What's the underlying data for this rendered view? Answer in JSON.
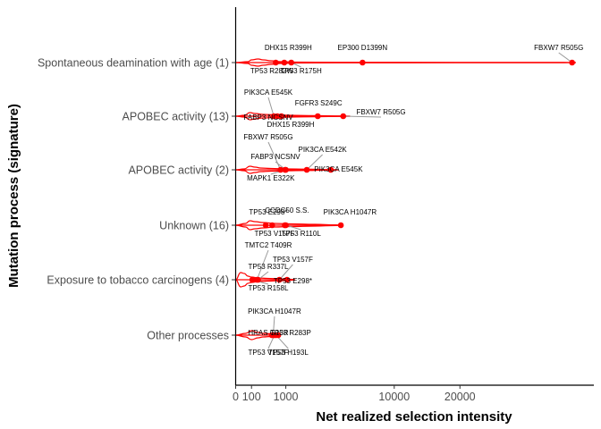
{
  "chart_data": {
    "type": "scatter",
    "title": "",
    "xlabel": "Net realized selection intensity",
    "ylabel": "Mutation process (signature)",
    "x_scale": "sqrt",
    "xlim": [
      0,
      50000
    ],
    "x_ticks": [
      {
        "value": 0,
        "label": "0"
      },
      {
        "value": 100,
        "label": "100"
      },
      {
        "value": 1000,
        "label": "1000"
      },
      {
        "value": 10000,
        "label": "10000"
      },
      {
        "value": 20000,
        "label": "20000"
      }
    ],
    "grid": false,
    "colors": {
      "points": "#ff0000",
      "violin": "#ff0000",
      "leader": "#999999",
      "axis": "#000000"
    },
    "categories": [
      {
        "name": "Spontaneous deamination with age (1)",
        "violin": [
          [
            0,
            0
          ],
          [
            60,
            1
          ],
          [
            100,
            3
          ],
          [
            200,
            4
          ],
          [
            300,
            3
          ],
          [
            500,
            2
          ],
          [
            800,
            1
          ],
          [
            1500,
            0.5
          ],
          [
            4000,
            0.3
          ],
          [
            20000,
            0.2
          ],
          [
            40000,
            0.2
          ],
          [
            46000,
            0
          ]
        ],
        "points": [
          {
            "label": "DHX15 R399H",
            "x": 940,
            "lx": 1100,
            "ly_off": -14
          },
          {
            "label": "TP53 R282W",
            "x": 640,
            "lx": 520,
            "ly_off": 12
          },
          {
            "label": "TP53 R175H",
            "x": 1230,
            "lx": 1700,
            "ly_off": 12
          },
          {
            "label": "EP300 D1399N",
            "x": 6400,
            "lx": 6400,
            "ly_off": -14
          },
          {
            "label": "FBXW7 R505G",
            "x": 45000,
            "lx": 41500,
            "ly_off": -14
          }
        ]
      },
      {
        "name": "APOBEC activity (13)",
        "violin": [
          [
            0,
            0
          ],
          [
            30,
            1
          ],
          [
            80,
            4
          ],
          [
            150,
            3
          ],
          [
            300,
            2
          ],
          [
            600,
            1.5
          ],
          [
            1200,
            1
          ],
          [
            2500,
            0.6
          ],
          [
            4500,
            0.3
          ],
          [
            5200,
            0
          ]
        ],
        "points": [
          {
            "label": "PIK3CA E545K",
            "x": 580,
            "lx": 380,
            "ly_off": -24
          },
          {
            "label": "FABP3 NCSNV",
            "x": 690,
            "lx": 150,
            "ly_off": 4
          },
          {
            "label": "DHX15 R399H",
            "x": 830,
            "lx": 1200,
            "ly_off": 12
          },
          {
            "label": "FGFR3 S249C",
            "x": 2680,
            "lx": 2730,
            "ly_off": -12
          },
          {
            "label": "FBXW7 R505G",
            "x": 4600,
            "lx": 8400,
            "ly_off": -2
          }
        ]
      },
      {
        "name": "APOBEC activity (2)",
        "violin": [
          [
            0,
            0
          ],
          [
            30,
            1
          ],
          [
            80,
            4
          ],
          [
            150,
            3
          ],
          [
            250,
            2
          ],
          [
            500,
            1.5
          ],
          [
            1000,
            1
          ],
          [
            2000,
            0.8
          ],
          [
            3500,
            0.3
          ],
          [
            4200,
            0
          ]
        ],
        "points": [
          {
            "label": "FBXW7 R505G",
            "x": 800,
            "lx": 110,
            "ly_off": -34
          },
          {
            "label": "FABP3 NCSNV",
            "x": 1000,
            "lx": 630,
            "ly_off": -12
          },
          {
            "label": "MAPK1 E322K",
            "x": 970,
            "lx": 490,
            "ly_off": 12
          },
          {
            "label": "PIK3CA E542K",
            "x": 2010,
            "lx": 3000,
            "ly_off": -20
          },
          {
            "label": "PIK3CA E545K",
            "x": 3600,
            "lx": 4200,
            "ly_off": 2
          }
        ]
      },
      {
        "name": "Unknown (16)",
        "violin": [
          [
            0,
            0
          ],
          [
            40,
            2
          ],
          [
            80,
            5
          ],
          [
            150,
            4
          ],
          [
            300,
            3
          ],
          [
            600,
            2
          ],
          [
            1200,
            1.5
          ],
          [
            2500,
            1
          ],
          [
            4000,
            0.4
          ],
          [
            4600,
            0
          ]
        ],
        "points": [
          {
            "label": "TP53 E298*",
            "x": 360,
            "lx": 210,
            "ly_off": -12
          },
          {
            "label": "CCDC50 S.S.",
            "x": 960,
            "lx": 1050,
            "ly_off": -14
          },
          {
            "label": "TP53 V157F",
            "x": 530,
            "lx": 600,
            "ly_off": 12
          },
          {
            "label": "TP53 R110L",
            "x": 1000,
            "lx": 1700,
            "ly_off": 12
          },
          {
            "label": "PIK3CA H1047R",
            "x": 4400,
            "lx": 5200,
            "ly_off": -12
          }
        ]
      },
      {
        "name": "Exposure to tobacco carcinogens (4)",
        "violin": [
          [
            0,
            0
          ],
          [
            10,
            8
          ],
          [
            30,
            7
          ],
          [
            60,
            4
          ],
          [
            100,
            3
          ],
          [
            200,
            2
          ],
          [
            400,
            1.5
          ],
          [
            800,
            1
          ],
          [
            1200,
            0.5
          ],
          [
            1400,
            0
          ]
        ],
        "points": [
          {
            "label": "TMTC2 T409R",
            "x": 180,
            "lx": 50,
            "ly_off": -36
          },
          {
            "label": "TP53 R337L",
            "x": 200,
            "lx": 370,
            "ly_off": -12
          },
          {
            "label": "TP53 R158L",
            "x": 110,
            "lx": 110,
            "ly_off": 12
          },
          {
            "label": "TP53 V157F",
            "x": 760,
            "lx": 1300,
            "ly_off": -20
          },
          {
            "label": "TP53 E298*",
            "x": 1050,
            "lx": 1300,
            "ly_off": 4
          }
        ]
      },
      {
        "name": "Other processes",
        "violin": [
          [
            0,
            0
          ],
          [
            40,
            2
          ],
          [
            100,
            5
          ],
          [
            200,
            3
          ],
          [
            300,
            2
          ],
          [
            500,
            1.5
          ],
          [
            700,
            0.5
          ],
          [
            800,
            0
          ]
        ],
        "points": [
          {
            "label": "PIK3CA H1047R",
            "x": 560,
            "lx": 600,
            "ly_off": -24
          },
          {
            "label": "HRAS G13R",
            "x": 520,
            "lx": 60,
            "ly_off": 0
          },
          {
            "label": "TP53 R283P",
            "x": 720,
            "lx": 1200,
            "ly_off": 0
          },
          {
            "label": "TP53 V157F",
            "x": 600,
            "lx": 380,
            "ly_off": 22
          },
          {
            "label": "TP53 H193L",
            "x": 650,
            "lx": 1100,
            "ly_off": 22
          }
        ]
      }
    ]
  }
}
